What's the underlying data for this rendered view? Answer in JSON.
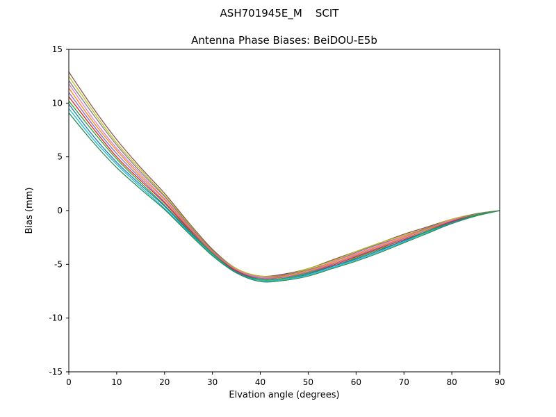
{
  "figure": {
    "background_color": "#ffffff",
    "axes_color": "#000000"
  },
  "chart_data": {
    "type": "line",
    "title": "ASH701945E_M    SCIT",
    "subtitle": "Antenna Phase Biases: BeiDOU-E5b",
    "xlabel": "Elvation angle (degrees)",
    "ylabel": "Bias (mm)",
    "xlim": [
      0,
      90
    ],
    "ylim": [
      -15,
      15
    ],
    "xticks": [
      0,
      10,
      20,
      30,
      40,
      50,
      60,
      70,
      80,
      90
    ],
    "yticks": [
      -15,
      -10,
      -5,
      0,
      5,
      10,
      15
    ],
    "grid": false,
    "legend": "none",
    "x": [
      0,
      5,
      10,
      15,
      20,
      25,
      30,
      35,
      40,
      45,
      50,
      55,
      60,
      65,
      70,
      75,
      80,
      85,
      90
    ],
    "series": [
      {
        "name": "curve-01",
        "color": "#8c564b",
        "values": [
          12.9,
          9.6,
          6.6,
          4.0,
          1.6,
          -1.1,
          -3.6,
          -5.4,
          -6.1,
          -5.9,
          -5.4,
          -4.6,
          -3.8,
          -3.0,
          -2.2,
          -1.5,
          -0.8,
          -0.3,
          0.0
        ]
      },
      {
        "name": "curve-02",
        "color": "#bcbd22",
        "values": [
          12.5,
          9.3,
          6.3,
          3.8,
          1.4,
          -1.2,
          -3.7,
          -5.4,
          -6.1,
          -6.0,
          -5.4,
          -4.7,
          -3.8,
          -3.0,
          -2.3,
          -1.6,
          -0.8,
          -0.3,
          0.0
        ]
      },
      {
        "name": "curve-03",
        "color": "#7f7f7f",
        "values": [
          12.1,
          9.0,
          6.1,
          3.6,
          1.3,
          -1.3,
          -3.7,
          -5.5,
          -6.2,
          -6.0,
          -5.5,
          -4.8,
          -3.9,
          -3.1,
          -2.4,
          -1.6,
          -0.9,
          -0.3,
          0.0
        ]
      },
      {
        "name": "curve-04",
        "color": "#e377c2",
        "values": [
          11.8,
          8.6,
          5.8,
          3.4,
          1.1,
          -1.4,
          -3.8,
          -5.5,
          -6.2,
          -6.1,
          -5.6,
          -4.8,
          -4.0,
          -3.2,
          -2.4,
          -1.7,
          -0.9,
          -0.4,
          0.0
        ]
      },
      {
        "name": "curve-05",
        "color": "#ff7f0e",
        "values": [
          11.4,
          8.3,
          5.6,
          3.2,
          1.0,
          -1.5,
          -3.8,
          -5.6,
          -6.3,
          -6.1,
          -5.6,
          -4.9,
          -4.1,
          -3.3,
          -2.5,
          -1.7,
          -1.0,
          -0.4,
          0.0
        ]
      },
      {
        "name": "curve-06",
        "color": "#9467bd",
        "values": [
          11.0,
          8.0,
          5.3,
          3.0,
          0.8,
          -1.6,
          -3.9,
          -5.6,
          -6.3,
          -6.2,
          -5.7,
          -5.0,
          -4.2,
          -3.4,
          -2.6,
          -1.8,
          -1.0,
          -0.4,
          0.0
        ]
      },
      {
        "name": "curve-07",
        "color": "#d62728",
        "values": [
          10.6,
          7.7,
          5.0,
          2.8,
          0.7,
          -1.7,
          -4.0,
          -5.6,
          -6.4,
          -6.3,
          -5.8,
          -5.1,
          -4.3,
          -3.5,
          -2.7,
          -1.9,
          -1.0,
          -0.4,
          0.0
        ]
      },
      {
        "name": "curve-08",
        "color": "#2ca02c",
        "values": [
          10.2,
          7.4,
          4.8,
          2.6,
          0.5,
          -1.8,
          -4.0,
          -5.7,
          -6.4,
          -6.3,
          -5.8,
          -5.2,
          -4.4,
          -3.6,
          -2.8,
          -1.9,
          -1.1,
          -0.4,
          0.0
        ]
      },
      {
        "name": "curve-09",
        "color": "#1f77b4",
        "values": [
          9.9,
          7.0,
          4.5,
          2.4,
          0.4,
          -1.9,
          -4.1,
          -5.7,
          -6.5,
          -6.4,
          -5.9,
          -5.2,
          -4.5,
          -3.7,
          -2.8,
          -2.0,
          -1.1,
          -0.5,
          0.0
        ]
      },
      {
        "name": "curve-10",
        "color": "#17becf",
        "values": [
          9.5,
          6.7,
          4.3,
          2.2,
          0.2,
          -2.0,
          -4.1,
          -5.8,
          -6.5,
          -6.4,
          -6.0,
          -5.3,
          -4.6,
          -3.8,
          -2.9,
          -2.0,
          -1.2,
          -0.5,
          0.0
        ]
      },
      {
        "name": "curve-11",
        "color": "#2e8b57",
        "values": [
          9.1,
          6.4,
          4.0,
          2.0,
          0.1,
          -2.1,
          -4.2,
          -5.8,
          -6.6,
          -6.5,
          -6.1,
          -5.4,
          -4.7,
          -3.9,
          -3.0,
          -2.1,
          -1.2,
          -0.5,
          0.0
        ]
      }
    ]
  }
}
